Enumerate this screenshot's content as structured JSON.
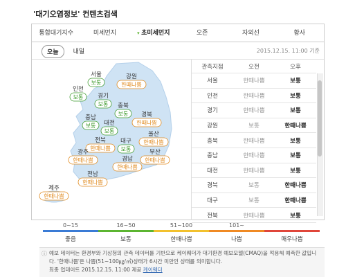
{
  "header": {
    "title": "'대기오염정보' 컨텐츠검색"
  },
  "tabs": [
    "통합대기지수",
    "미세먼지",
    "초미세먼지",
    "오존",
    "자외선",
    "황사"
  ],
  "active_tab": 2,
  "day_tabs": [
    "오늘",
    "내일"
  ],
  "timestamp": "2015.12.15. 11:00 기준",
  "map": {
    "regions": [
      {
        "name": "서울",
        "status": "보통",
        "color": "#3f9b2e"
      },
      {
        "name": "강원",
        "status": "한때나쁨",
        "color": "#e0891c"
      },
      {
        "name": "인천",
        "status": "보통",
        "color": "#3f9b2e"
      },
      {
        "name": "경기",
        "status": "보통",
        "color": "#3f9b2e"
      },
      {
        "name": "충북",
        "status": "보통",
        "color": "#3f9b2e"
      },
      {
        "name": "충남",
        "status": "보통",
        "color": "#3f9b2e"
      },
      {
        "name": "대전",
        "status": "보통",
        "color": "#3f9b2e"
      },
      {
        "name": "경북",
        "status": "한때나쁨",
        "color": "#e0891c"
      },
      {
        "name": "울산",
        "status": "한때나쁨",
        "color": "#e0891c"
      },
      {
        "name": "전북",
        "status": "한때나쁨",
        "color": "#e0891c"
      },
      {
        "name": "대구",
        "status": "보통",
        "color": "#3f9b2e"
      },
      {
        "name": "부산",
        "status": "한때나쁨",
        "color": "#e0891c"
      },
      {
        "name": "광주",
        "status": "한때나쁨",
        "color": "#e0891c"
      },
      {
        "name": "경남",
        "status": "한때나쁨",
        "color": "#e0891c"
      },
      {
        "name": "전남",
        "status": "한때나쁨",
        "color": "#e0891c"
      },
      {
        "name": "제주",
        "status": "한때나쁨",
        "color": "#e0891c"
      }
    ]
  },
  "table": {
    "header": [
      "관측지점",
      "오전",
      "오후"
    ],
    "rows": [
      [
        "서울",
        "한때나쁨",
        "보통"
      ],
      [
        "인천",
        "한때나쁨",
        "보통"
      ],
      [
        "경기",
        "한때나쁨",
        "보통"
      ],
      [
        "강원",
        "보통",
        "한때나쁨"
      ],
      [
        "충북",
        "한때나쁨",
        "보통"
      ],
      [
        "충남",
        "한때나쁨",
        "보통"
      ],
      [
        "대전",
        "한때나쁨",
        "보통"
      ],
      [
        "경북",
        "보통",
        "한때나쁨"
      ],
      [
        "대구",
        "보통",
        "한때나쁨"
      ],
      [
        "전북",
        "한때나쁨",
        "보통"
      ]
    ]
  },
  "legend": {
    "ranges": [
      "0~15",
      "16~50",
      "51~100",
      "101~"
    ],
    "levels": [
      {
        "name": "좋음",
        "color": "#3a7bd5"
      },
      {
        "name": "보통",
        "color": "#5cb531"
      },
      {
        "name": "한때나쁨",
        "color": "#f2c12e"
      },
      {
        "name": "나쁨",
        "color": "#f08a24"
      },
      {
        "name": "매우나쁨",
        "color": "#e0463a"
      }
    ]
  },
  "note": {
    "text": "예보 데이터는 환경부와 기상청의 관측 데이터를 기반으로 케이웨더가 대기환경 예보모델(CMAQ)을 적용해 예측한 값입니다. '한때나쁨'은 나쁨(51~100㎍/㎥)상태가 6시간 미만인 상태를 의미합니다.",
    "update": "최종 업데이트 2015.12.15. 11:00 제공",
    "provider": "케이웨더"
  }
}
